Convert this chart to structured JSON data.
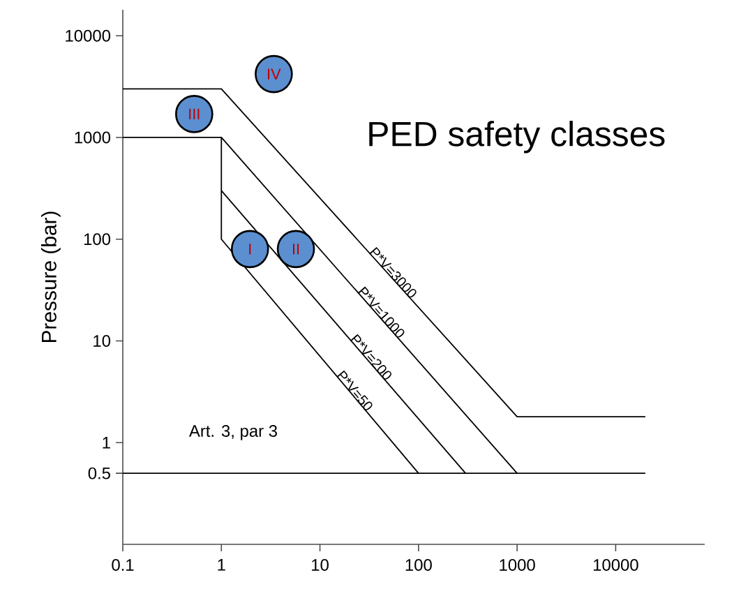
{
  "chart_data": {
    "type": "line",
    "title": "PED safety classes",
    "ylabel": "Pressure (bar)",
    "log": "xy",
    "grid": false,
    "marker": "none",
    "line_style": "solid",
    "xlim": [
      0.1,
      80000
    ],
    "ylim": [
      0.1,
      18000
    ],
    "xticks": [
      0.1,
      1,
      10,
      100,
      1000,
      10000
    ],
    "yticks": [
      0.5,
      1,
      10,
      100,
      1000,
      10000
    ],
    "annotations": [
      "Art. 3, par 3"
    ],
    "series": [
      {
        "name": "P*V=3000",
        "color": "#000000",
        "x": [
          0.1,
          1,
          1000,
          20000
        ],
        "values": [
          3000,
          3000,
          1.8,
          1.8
        ]
      },
      {
        "name": "P*V=1000",
        "color": "#000000",
        "x": [
          0.1,
          1,
          1000
        ],
        "values": [
          1000,
          1000,
          0.5
        ]
      },
      {
        "name": "P*V=200",
        "color": "#000000",
        "x": [
          1,
          300
        ],
        "values": [
          300,
          0.5
        ]
      },
      {
        "name": "P*V=50",
        "color": "#000000",
        "x": [
          1,
          1,
          100
        ],
        "values": [
          1000,
          100,
          0.5
        ]
      },
      {
        "color": "#000000",
        "x": [
          0.1,
          20000
        ],
        "values": [
          0.5,
          0.5
        ]
      },
      {
        "type": "scatter",
        "marker": "circle",
        "color": "#5b8fd0",
        "x": [
          1.95,
          5.7,
          0.53,
          3.4
        ],
        "values": [
          80,
          80,
          1700,
          4200
        ],
        "value_labels": [
          "I",
          "II",
          "III",
          "IV"
        ]
      }
    ]
  }
}
